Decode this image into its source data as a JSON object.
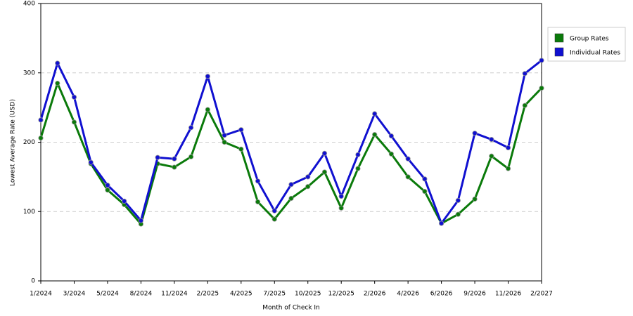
{
  "chart_data": {
    "type": "line",
    "x_label": "Month of Check In",
    "y_label": "Lowest Average Rate (USD)",
    "categories": [
      "1/2024",
      null,
      "3/2024",
      null,
      "5/2024",
      null,
      "8/2024",
      null,
      "11/2024",
      null,
      "2/2025",
      null,
      "4/2025",
      null,
      "7/2025",
      null,
      "10/2025",
      null,
      "12/2025",
      null,
      "2/2026",
      null,
      "4/2026",
      null,
      "6/2026",
      null,
      "9/2026",
      null,
      "11/2026",
      null,
      "2/2027"
    ],
    "series": [
      {
        "name": "Group Rates",
        "color": "#0a7a0a",
        "values": [
          206,
          285,
          229,
          169,
          131,
          110,
          82,
          169,
          164,
          179,
          247,
          200,
          190,
          114,
          89,
          119,
          136,
          157,
          105,
          162,
          211,
          183,
          150,
          129,
          83,
          96,
          118,
          180,
          162,
          253,
          278
        ]
      },
      {
        "name": "Individual Rates",
        "color": "#1010d0",
        "values": [
          232,
          314,
          265,
          171,
          138,
          115,
          87,
          178,
          176,
          221,
          295,
          210,
          218,
          144,
          101,
          139,
          150,
          184,
          122,
          182,
          241,
          209,
          176,
          147,
          83,
          116,
          213,
          204,
          192,
          299,
          318
        ]
      }
    ],
    "ylim": [
      0,
      400
    ],
    "yticks": [
      0,
      100,
      200,
      300,
      400
    ],
    "grid": true,
    "legend": "right"
  }
}
